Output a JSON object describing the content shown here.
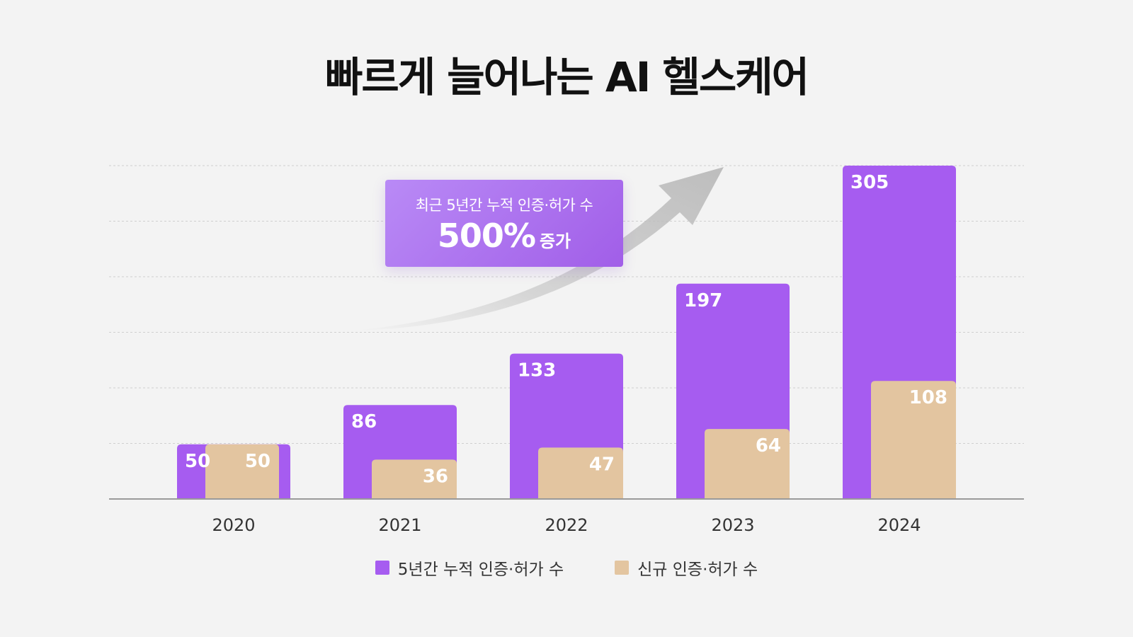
{
  "title": "빠르게 늘어나는 AI 헬스케어",
  "callout": {
    "line1": "최근 5년간 누적 인증·허가 수",
    "big": "500%",
    "small": "증가"
  },
  "colors": {
    "cumulative": "#a65cf0",
    "new": "#e3c5a0",
    "arrow": "#bdbdbd",
    "grid": "#cfcfcf",
    "axis": "#9a9a9a"
  },
  "chart_data": {
    "type": "bar",
    "categories": [
      "2020",
      "2021",
      "2022",
      "2023",
      "2024"
    ],
    "series": [
      {
        "name": "5년간 누적 인증·허가 수",
        "values": [
          50,
          86,
          133,
          197,
          305
        ]
      },
      {
        "name": "신규 인증·허가 수",
        "values": [
          50,
          36,
          47,
          64,
          108
        ]
      }
    ],
    "ylim": [
      0,
      305
    ],
    "grid": true,
    "legend": "bottom-center"
  }
}
